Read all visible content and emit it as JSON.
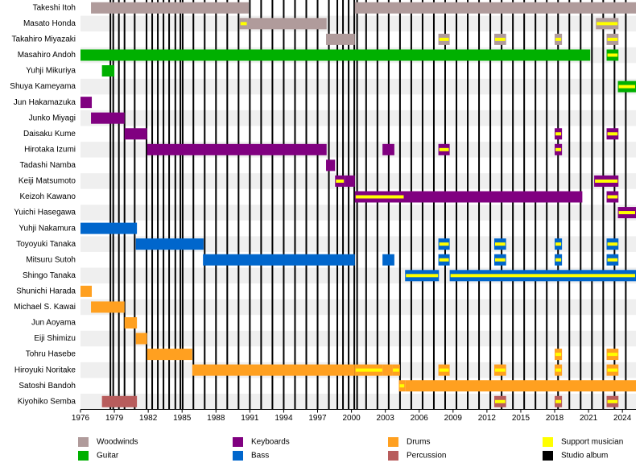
{
  "chart_data": {
    "type": "timeline",
    "xlim": [
      1976,
      2025.2
    ],
    "xticks": [
      1976,
      1979,
      1982,
      1985,
      1988,
      1991,
      1994,
      1997,
      2000,
      2003,
      2006,
      2009,
      2012,
      2015,
      2018,
      2021,
      2024
    ],
    "support_color": "#ffff00",
    "album_color": "#000000",
    "albums": [
      1978.65,
      1978.9,
      1979.4,
      1979.9,
      1980.8,
      1981.85,
      1982.35,
      1982.85,
      1983.35,
      1983.85,
      1984.4,
      1984.85,
      1985.05,
      1986.0,
      1987.0,
      1988.0,
      1989.0,
      1990.0,
      1991.0,
      1992.0,
      1993.0,
      1994.0,
      1995.0,
      1996.0,
      1997.0,
      1998.0,
      1998.75,
      1999.25,
      1999.75,
      2000.25,
      2000.5,
      2001.3,
      2002.3,
      2003.3,
      2004.3,
      2005.3,
      2006.3,
      2007.3,
      2008.3,
      2009.3,
      2010.3,
      2011.3,
      2012.3,
      2013.3,
      2014.3,
      2015.3,
      2016.3,
      2017.3,
      2018.3,
      2019.3,
      2020.3,
      2021.3,
      2022.3,
      2023.3,
      2024.3
    ],
    "legend": [
      {
        "name": "Woodwinds",
        "color": "#b09b9b"
      },
      {
        "name": "Guitar",
        "color": "#00b000"
      },
      {
        "name": "Keyboards",
        "color": "#800080"
      },
      {
        "name": "Bass",
        "color": "#0066cc"
      },
      {
        "name": "Drums",
        "color": "#ffa020"
      },
      {
        "name": "Percussion",
        "color": "#b85c5c"
      },
      {
        "name": "Support musician",
        "color": "#ffff00"
      },
      {
        "name": "Studio album",
        "color": "#000000"
      }
    ],
    "rows": [
      {
        "name": "Takeshi Itoh",
        "color": "#b09b9b",
        "periods": [
          {
            "start": 1976.93,
            "end": 1990.9
          },
          {
            "start": 2000.3,
            "end": 2025.2
          }
        ]
      },
      {
        "name": "Masato Honda",
        "color": "#b09b9b",
        "periods": [
          {
            "start": 1990.1,
            "end": 1990.8,
            "support": true
          },
          {
            "start": 1990.8,
            "end": 1997.8
          },
          {
            "start": 2021.65,
            "end": 2023.65,
            "support": true
          }
        ]
      },
      {
        "name": "Takahiro Miyazaki",
        "color": "#b09b9b",
        "periods": [
          {
            "start": 1997.75,
            "end": 2000.3
          },
          {
            "start": 2007.7,
            "end": 2008.7,
            "support": true
          },
          {
            "start": 2012.65,
            "end": 2013.7,
            "support": true
          },
          {
            "start": 2018.0,
            "end": 2018.65,
            "support": true
          },
          {
            "start": 2022.6,
            "end": 2023.65,
            "support": true
          }
        ]
      },
      {
        "name": "Masahiro Andoh",
        "color": "#00b000",
        "periods": [
          {
            "start": 1976.0,
            "end": 2021.15
          },
          {
            "start": 2022.6,
            "end": 2023.65,
            "support": true
          }
        ]
      },
      {
        "name": "Yuhji Mikuriya",
        "color": "#00b000",
        "periods": [
          {
            "start": 1977.9,
            "end": 1979.0
          }
        ]
      },
      {
        "name": "Shuya Kameyama",
        "color": "#00b000",
        "periods": [
          {
            "start": 2023.6,
            "end": 2025.2,
            "support": true
          }
        ]
      },
      {
        "name": "Jun Hakamazuka",
        "color": "#800080",
        "periods": [
          {
            "start": 1976.0,
            "end": 1977.0
          }
        ]
      },
      {
        "name": "Junko Miyagi",
        "color": "#800080",
        "periods": [
          {
            "start": 1976.93,
            "end": 1979.9
          }
        ]
      },
      {
        "name": "Daisaku Kume",
        "color": "#800080",
        "periods": [
          {
            "start": 1979.9,
            "end": 1981.9
          },
          {
            "start": 2018.0,
            "end": 2018.65,
            "support": true
          },
          {
            "start": 2022.6,
            "end": 2023.65,
            "support": true
          }
        ]
      },
      {
        "name": "Hirotaka Izumi",
        "color": "#800080",
        "periods": [
          {
            "start": 1981.9,
            "end": 1997.8
          },
          {
            "start": 2002.75,
            "end": 2003.8
          },
          {
            "start": 2007.7,
            "end": 2008.7,
            "support": true
          },
          {
            "start": 2018.0,
            "end": 2018.65,
            "support": true
          }
        ]
      },
      {
        "name": "Tadashi Namba",
        "color": "#800080",
        "periods": [
          {
            "start": 1997.75,
            "end": 1998.55
          }
        ]
      },
      {
        "name": "Keiji Matsumoto",
        "color": "#800080",
        "periods": [
          {
            "start": 1998.55,
            "end": 1999.4,
            "support": true
          },
          {
            "start": 1999.4,
            "end": 2000.3
          },
          {
            "start": 2021.5,
            "end": 2023.65,
            "support": true
          }
        ]
      },
      {
        "name": "Keizoh Kawano",
        "color": "#800080",
        "periods": [
          {
            "start": 2000.3,
            "end": 2004.7,
            "support": true
          },
          {
            "start": 2004.7,
            "end": 2020.45
          },
          {
            "start": 2022.6,
            "end": 2023.65,
            "support": true
          }
        ]
      },
      {
        "name": "Yuichi Hasegawa",
        "color": "#800080",
        "periods": [
          {
            "start": 2023.6,
            "end": 2025.2,
            "support": true
          }
        ]
      },
      {
        "name": "Yuhji Nakamura",
        "color": "#0066cc",
        "periods": [
          {
            "start": 1976.0,
            "end": 1981.0
          }
        ]
      },
      {
        "name": "Toyoyuki Tanaka",
        "color": "#0066cc",
        "periods": [
          {
            "start": 1980.9,
            "end": 1986.9
          },
          {
            "start": 2007.7,
            "end": 2008.7,
            "support": true
          },
          {
            "start": 2012.65,
            "end": 2013.7,
            "support": true
          },
          {
            "start": 2018.0,
            "end": 2018.65,
            "support": true
          },
          {
            "start": 2022.6,
            "end": 2023.65,
            "support": true
          }
        ]
      },
      {
        "name": "Mitsuru Sutoh",
        "color": "#0066cc",
        "periods": [
          {
            "start": 1986.85,
            "end": 2000.3
          },
          {
            "start": 2002.75,
            "end": 2003.8
          },
          {
            "start": 2007.7,
            "end": 2008.7,
            "support": true
          },
          {
            "start": 2012.65,
            "end": 2013.7,
            "support": true
          },
          {
            "start": 2018.0,
            "end": 2018.65,
            "support": true
          },
          {
            "start": 2022.6,
            "end": 2023.65,
            "support": true
          }
        ]
      },
      {
        "name": "Shingo Tanaka",
        "color": "#0066cc",
        "periods": [
          {
            "start": 2004.75,
            "end": 2007.75,
            "support": true
          },
          {
            "start": 2008.7,
            "end": 2025.2,
            "support": true
          }
        ]
      },
      {
        "name": "Shunichi Harada",
        "color": "#ffa020",
        "periods": [
          {
            "start": 1976.0,
            "end": 1977.0
          }
        ]
      },
      {
        "name": "Michael S. Kawai",
        "color": "#ffa020",
        "periods": [
          {
            "start": 1976.93,
            "end": 1979.9
          }
        ]
      },
      {
        "name": "Jun Aoyama",
        "color": "#ffa020",
        "periods": [
          {
            "start": 1979.9,
            "end": 1981.0
          }
        ]
      },
      {
        "name": "Eiji Shimizu",
        "color": "#ffa020",
        "periods": [
          {
            "start": 1980.9,
            "end": 1981.9
          }
        ]
      },
      {
        "name": "Tohru Hasebe",
        "color": "#ffa020",
        "periods": [
          {
            "start": 1981.9,
            "end": 1985.9
          },
          {
            "start": 2018.0,
            "end": 2018.65,
            "support": true
          },
          {
            "start": 2022.6,
            "end": 2023.65,
            "support": true
          }
        ]
      },
      {
        "name": "Hiroyuki Noritake",
        "color": "#ffa020",
        "periods": [
          {
            "start": 1985.9,
            "end": 2000.3
          },
          {
            "start": 2000.3,
            "end": 2002.8,
            "support": true
          },
          {
            "start": 2002.8,
            "end": 2003.6
          },
          {
            "start": 2003.6,
            "end": 2004.3,
            "support": true
          },
          {
            "start": 2007.7,
            "end": 2008.7,
            "support": true
          },
          {
            "start": 2012.65,
            "end": 2013.7,
            "support": true
          },
          {
            "start": 2018.0,
            "end": 2018.65,
            "support": true
          },
          {
            "start": 2022.6,
            "end": 2023.65,
            "support": true
          }
        ]
      },
      {
        "name": "Satoshi Bandoh",
        "color": "#ffa020",
        "periods": [
          {
            "start": 2004.2,
            "end": 2004.75,
            "support": true
          },
          {
            "start": 2004.75,
            "end": 2025.2
          }
        ]
      },
      {
        "name": "Kiyohiko Semba",
        "color": "#b85c5c",
        "periods": [
          {
            "start": 1977.9,
            "end": 1981.0
          },
          {
            "start": 2012.65,
            "end": 2013.7,
            "support": true
          },
          {
            "start": 2018.0,
            "end": 2018.65,
            "support": true
          },
          {
            "start": 2022.6,
            "end": 2023.65,
            "support": true
          }
        ]
      }
    ]
  }
}
